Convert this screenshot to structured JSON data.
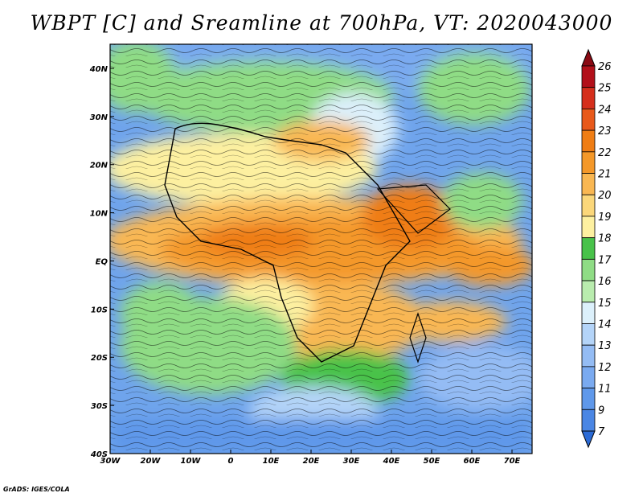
{
  "title": "WBPT [C] and Sreamline at 700hPa, VT: 2020043000",
  "credit": "GrADS: IGES/COLA",
  "map": {
    "lon_labels": [
      "30W",
      "20W",
      "10W",
      "0",
      "10E",
      "20E",
      "30E",
      "40E",
      "50E",
      "60E",
      "70E"
    ],
    "lon_values": [
      -30,
      -20,
      -10,
      0,
      10,
      20,
      30,
      40,
      50,
      60,
      70
    ],
    "lat_labels": [
      "40N",
      "30N",
      "20N",
      "10N",
      "EQ",
      "10S",
      "20S",
      "30S",
      "40S"
    ],
    "lat_values": [
      40,
      30,
      20,
      10,
      0,
      -10,
      -20,
      -30,
      -40
    ],
    "lon_range": [
      -30,
      75
    ],
    "lat_range": [
      -40,
      45
    ]
  },
  "colorbar": {
    "levels": [
      "7",
      "9",
      "11",
      "12",
      "13",
      "14",
      "15",
      "16",
      "17",
      "18",
      "19",
      "20",
      "21",
      "22",
      "23",
      "24",
      "25",
      "26"
    ],
    "colors": [
      "#2b6bd6",
      "#4a86e4",
      "#5f98ea",
      "#7aaaf0",
      "#94bcf4",
      "#b4d4f8",
      "#dcf0fb",
      "#b9ecae",
      "#8fdc85",
      "#48c24a",
      "#fdf0a0",
      "#fbd77a",
      "#f9b752",
      "#f49829",
      "#ef7d14",
      "#e8591a",
      "#d52f1c",
      "#b2101a",
      "#8a0a14"
    ]
  },
  "chart_data": {
    "type": "heatmap",
    "title": "WBPT [C] and Sreamline at 700hPa, VT: 2020043000",
    "variable": "Wet-bulb potential temperature [C] with streamlines, 700hPa",
    "x_range_lon": [
      -30,
      75
    ],
    "y_range_lat": [
      -40,
      45
    ],
    "levels": [
      7,
      9,
      11,
      12,
      13,
      14,
      15,
      16,
      17,
      18,
      19,
      20,
      21,
      22,
      23,
      24,
      25,
      26
    ]
  }
}
